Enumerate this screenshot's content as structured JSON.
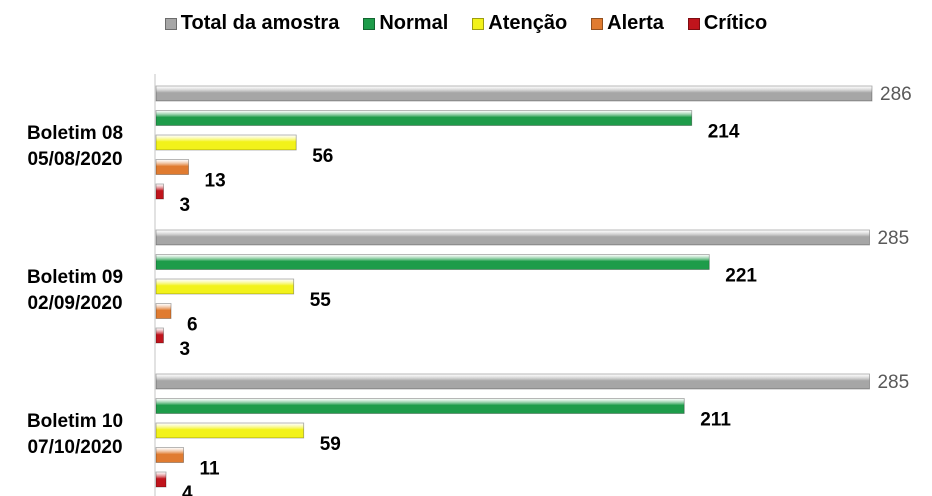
{
  "chart_data": {
    "type": "bar",
    "orientation": "horizontal",
    "categories": [
      [
        "Boletim 08",
        "05/08/2020"
      ],
      [
        "Boletim 09",
        "02/09/2020"
      ],
      [
        "Boletim 10",
        "07/10/2020"
      ]
    ],
    "series": [
      {
        "name": "Total da amostra",
        "color": "#a6a6a6",
        "values": [
          286,
          285,
          285
        ]
      },
      {
        "name": "Normal",
        "color": "#1e9c4a",
        "values": [
          214,
          221,
          211
        ]
      },
      {
        "name": "Atenção",
        "color": "#f2f21a",
        "values": [
          56,
          55,
          59
        ]
      },
      {
        "name": "Alerta",
        "color": "#e07b30",
        "values": [
          13,
          6,
          11
        ]
      },
      {
        "name": "Crítico",
        "color": "#c0141c",
        "values": [
          3,
          3,
          4
        ]
      }
    ],
    "legend_position": "top",
    "grid": false,
    "xlim": [
      0,
      286
    ]
  }
}
